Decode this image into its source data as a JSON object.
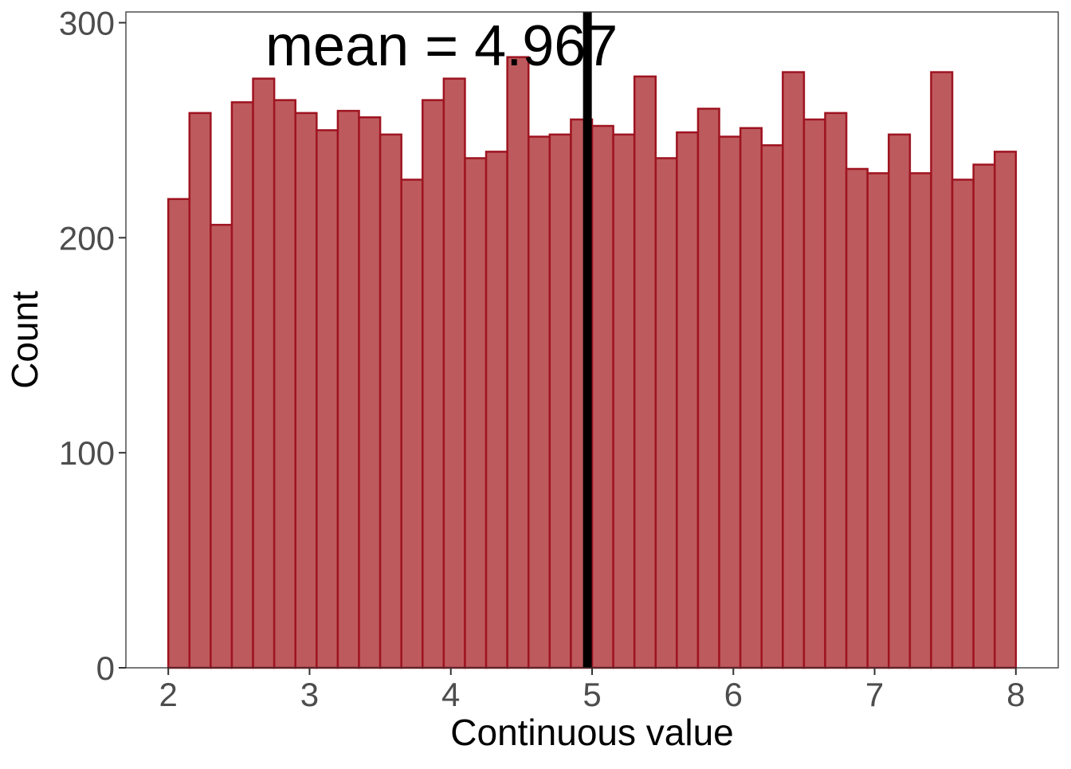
{
  "chart_data": {
    "type": "bar",
    "subtype": "histogram",
    "xlabel": "Continuous value",
    "ylabel": "Count",
    "xlim": [
      1.7,
      8.3
    ],
    "ylim": [
      0,
      305
    ],
    "x_ticks": [
      2,
      3,
      4,
      5,
      6,
      7,
      8
    ],
    "y_ticks": [
      0,
      100,
      200,
      300
    ],
    "bin_start": 2.0,
    "bin_width": 0.15,
    "values": [
      218,
      258,
      206,
      263,
      274,
      264,
      258,
      250,
      259,
      256,
      248,
      227,
      264,
      274,
      237,
      240,
      284,
      247,
      248,
      255,
      252,
      248,
      275,
      237,
      249,
      260,
      247,
      251,
      243,
      277,
      255,
      258,
      232,
      230,
      248,
      230,
      277,
      227,
      234,
      240
    ],
    "mean_line": {
      "value": 4.967,
      "label": "mean = 4.967",
      "color": "#000000"
    },
    "bar_fill": "#bd5a5e",
    "bar_stroke": "#9e1420",
    "grid": false,
    "legend": "none"
  }
}
